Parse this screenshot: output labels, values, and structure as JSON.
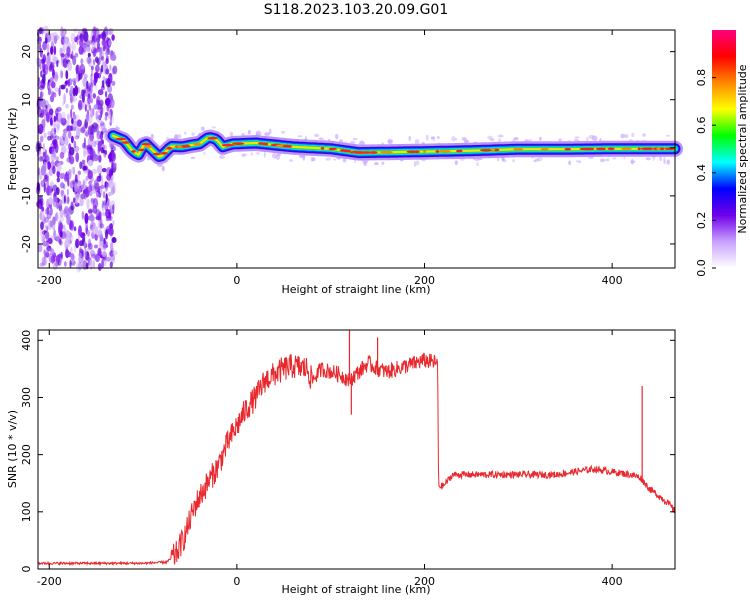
{
  "title": "S118.2023.103.20.09.G01",
  "chart_data": [
    {
      "type": "heatmap",
      "xlabel": "Height of straight line (km)",
      "ylabel": "Frequency (Hz)",
      "xlim": [
        -212,
        467
      ],
      "ylim": [
        -25,
        24.5
      ],
      "xticks": [
        -200,
        0,
        200,
        400
      ],
      "yticks": [
        20,
        10,
        0,
        -10,
        -20
      ],
      "ridge": {
        "x": [
          -132,
          -120,
          -112,
          -105,
          -98,
          -90,
          -82,
          -70,
          -58,
          -48,
          -40,
          -30,
          -22,
          -15,
          -5,
          20,
          60,
          100,
          130,
          200,
          250,
          300,
          350,
          400,
          467
        ],
        "freq": [
          2.5,
          1.5,
          -0.5,
          -1.5,
          1.0,
          -0.5,
          -2.0,
          0.3,
          0.2,
          0.6,
          0.8,
          2.2,
          1.8,
          0.2,
          0.8,
          1.0,
          0.2,
          -0.2,
          -1.0,
          -0.8,
          -0.6,
          -0.3,
          -0.3,
          -0.2,
          -0.2
        ]
      },
      "noise_region_x": [
        -212,
        -130
      ],
      "colorbar": {
        "label": "Normalized spectral amplitude",
        "range": [
          0.0,
          1.0
        ],
        "ticks": [
          "0.0",
          "0.2",
          "0.4",
          "0.6",
          "0.8"
        ],
        "colors": [
          "#ffffff",
          "#c8a0ff",
          "#7000e8",
          "#0000ff",
          "#00ffff",
          "#00ff00",
          "#ffff00",
          "#ff8800",
          "#ff0000",
          "#ff0080"
        ]
      }
    },
    {
      "type": "line",
      "xlabel": "Height of straight line (km)",
      "ylabel": "SNR (10 * v/v)",
      "xlim": [
        -212,
        467
      ],
      "ylim": [
        0,
        418
      ],
      "xticks": [
        -200,
        0,
        200,
        400
      ],
      "yticks": [
        0,
        100,
        200,
        300,
        400
      ],
      "color": "#e8282d",
      "x": [
        -212,
        -150,
        -100,
        -75,
        -65,
        -55,
        -45,
        -35,
        -20,
        -10,
        0,
        10,
        20,
        30,
        40,
        50,
        60,
        75,
        80,
        90,
        100,
        110,
        120,
        130,
        140,
        150,
        160,
        180,
        200,
        214,
        215,
        220,
        230,
        260,
        300,
        340,
        360,
        380,
        400,
        420,
        430,
        440,
        460,
        467
      ],
      "y": [
        10,
        10,
        10,
        12,
        25,
        60,
        110,
        140,
        180,
        220,
        250,
        280,
        300,
        330,
        340,
        350,
        355,
        350,
        330,
        350,
        345,
        340,
        330,
        345,
        360,
        350,
        345,
        355,
        365,
        360,
        145,
        145,
        165,
        165,
        165,
        165,
        170,
        175,
        170,
        165,
        160,
        140,
        115,
        100
      ],
      "spikes": [
        {
          "x": 120,
          "y": 418
        },
        {
          "x": 122,
          "y": 270
        },
        {
          "x": 150,
          "y": 405
        },
        {
          "x": 432,
          "y": 320
        }
      ]
    }
  ]
}
